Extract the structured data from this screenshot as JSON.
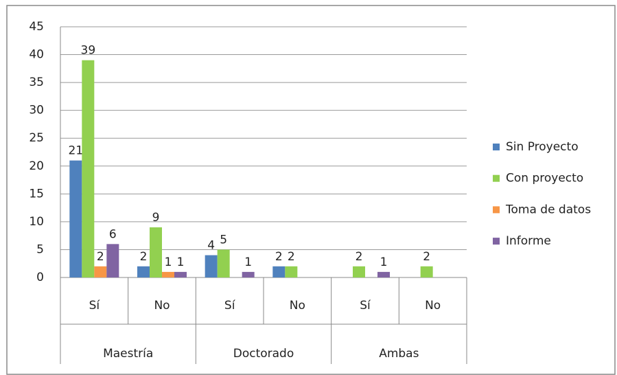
{
  "chart_data": {
    "type": "bar",
    "categories": [
      "Sí",
      "No",
      "Sí",
      "No",
      "Sí",
      "No"
    ],
    "groups": [
      "Maestría",
      "Doctorado",
      "Ambas"
    ],
    "series": [
      {
        "name": "Sin Proyecto",
        "color": "#4f81bd",
        "values": [
          21,
          2,
          4,
          2,
          null,
          null
        ]
      },
      {
        "name": "Con proyecto",
        "color": "#92d050",
        "values": [
          39,
          9,
          5,
          2,
          2,
          2
        ]
      },
      {
        "name": "Toma de datos",
        "color": "#f79646",
        "values": [
          2,
          1,
          null,
          null,
          null,
          null
        ]
      },
      {
        "name": "Informe",
        "color": "#8064a2",
        "values": [
          6,
          1,
          1,
          null,
          1,
          null
        ]
      }
    ],
    "ylim": [
      0,
      45
    ],
    "yticks": [
      0,
      5,
      10,
      15,
      20,
      25,
      30,
      35,
      40,
      45
    ],
    "grid": true,
    "legend": "right"
  }
}
